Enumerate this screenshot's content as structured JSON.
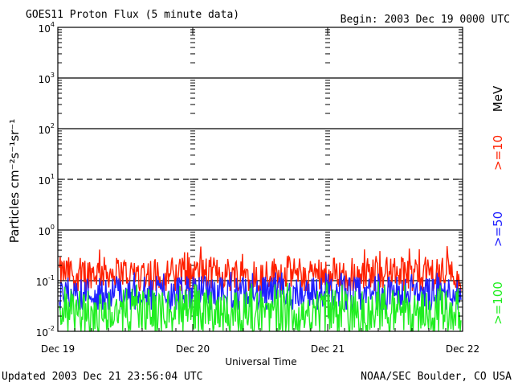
{
  "header": {
    "title": "GOES11 Proton Flux (5 minute data)",
    "begin": "Begin: 2003 Dec 19 0000 UTC"
  },
  "footer": {
    "updated": "Updated 2003 Dec 21 23:56:04 UTC",
    "source": "NOAA/SEC Boulder, CO USA"
  },
  "chart_data": {
    "type": "line",
    "title": "GOES11 Proton Flux (5 minute data)",
    "xlabel": "Universal Time",
    "ylabel": "Particles cm⁻²s⁻¹sr⁻¹",
    "yscale": "log",
    "ylim": [
      0.01,
      10000
    ],
    "y_ticks": [
      {
        "value": 0.01,
        "base": "10",
        "exp": "-2"
      },
      {
        "value": 0.1,
        "base": "10",
        "exp": "-1"
      },
      {
        "value": 1,
        "base": "10",
        "exp": "0"
      },
      {
        "value": 10,
        "base": "10",
        "exp": "1"
      },
      {
        "value": 100,
        "base": "10",
        "exp": "2"
      },
      {
        "value": 1000,
        "base": "10",
        "exp": "3"
      },
      {
        "value": 10000,
        "base": "10",
        "exp": "4"
      }
    ],
    "x_ticks": [
      "Dec 19",
      "Dec 20",
      "Dec 21",
      "Dec 22"
    ],
    "xlim": [
      "2003-12-19 00:00",
      "2003-12-22 00:00"
    ],
    "threshold_lines": [
      1000,
      100,
      10,
      1,
      0.1
    ],
    "legend": {
      "unit": "MeV",
      "entries": [
        {
          "label": ">=10",
          "color": "#ff2000"
        },
        {
          "label": ">=50",
          "color": "#2020ff"
        },
        {
          "label": ">=100",
          "color": "#20ee20"
        }
      ]
    },
    "series": [
      {
        "name": ">=10",
        "color": "#ff2000",
        "typical_low": 0.07,
        "typical_high": 0.3,
        "peak": 0.5
      },
      {
        "name": ">=50",
        "color": "#2020ff",
        "typical_low": 0.03,
        "typical_high": 0.12,
        "peak": 0.15
      },
      {
        "name": ">=100",
        "color": "#20ee20",
        "typical_low": 0.01,
        "typical_high": 0.07,
        "peak": 0.1
      }
    ]
  }
}
